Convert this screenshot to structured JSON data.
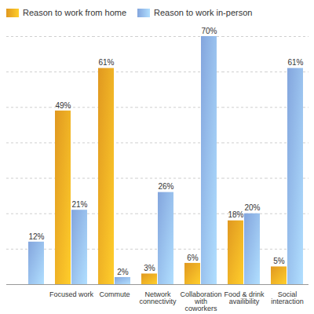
{
  "chart_data": {
    "type": "bar",
    "categories": [
      null,
      "Focused work",
      "Commute",
      "Network connectivity",
      "Collaboration with coworkers",
      "Food & drink availibility",
      "Social interaction"
    ],
    "series": [
      {
        "name": "Reason to work from home",
        "color": "#f5a623",
        "values": [
          null,
          49,
          61,
          3,
          6,
          18,
          5
        ],
        "value_labels": [
          null,
          "49%",
          "61%",
          "3%",
          "6%",
          "18%",
          "5%"
        ]
      },
      {
        "name": "Reason to work in-person",
        "color": "#8fb4f2",
        "values": [
          12,
          21,
          2,
          26,
          70,
          20,
          61
        ],
        "value_labels": [
          "12%",
          "21%",
          "2%",
          "26%",
          "70%",
          "20%",
          "61%"
        ]
      }
    ],
    "ylim": [
      0,
      70
    ],
    "yticks": [
      0,
      10,
      20,
      30,
      40,
      50,
      60,
      70
    ],
    "grid": true,
    "legend": "top",
    "data_labels": true,
    "tick_labels": "x"
  }
}
